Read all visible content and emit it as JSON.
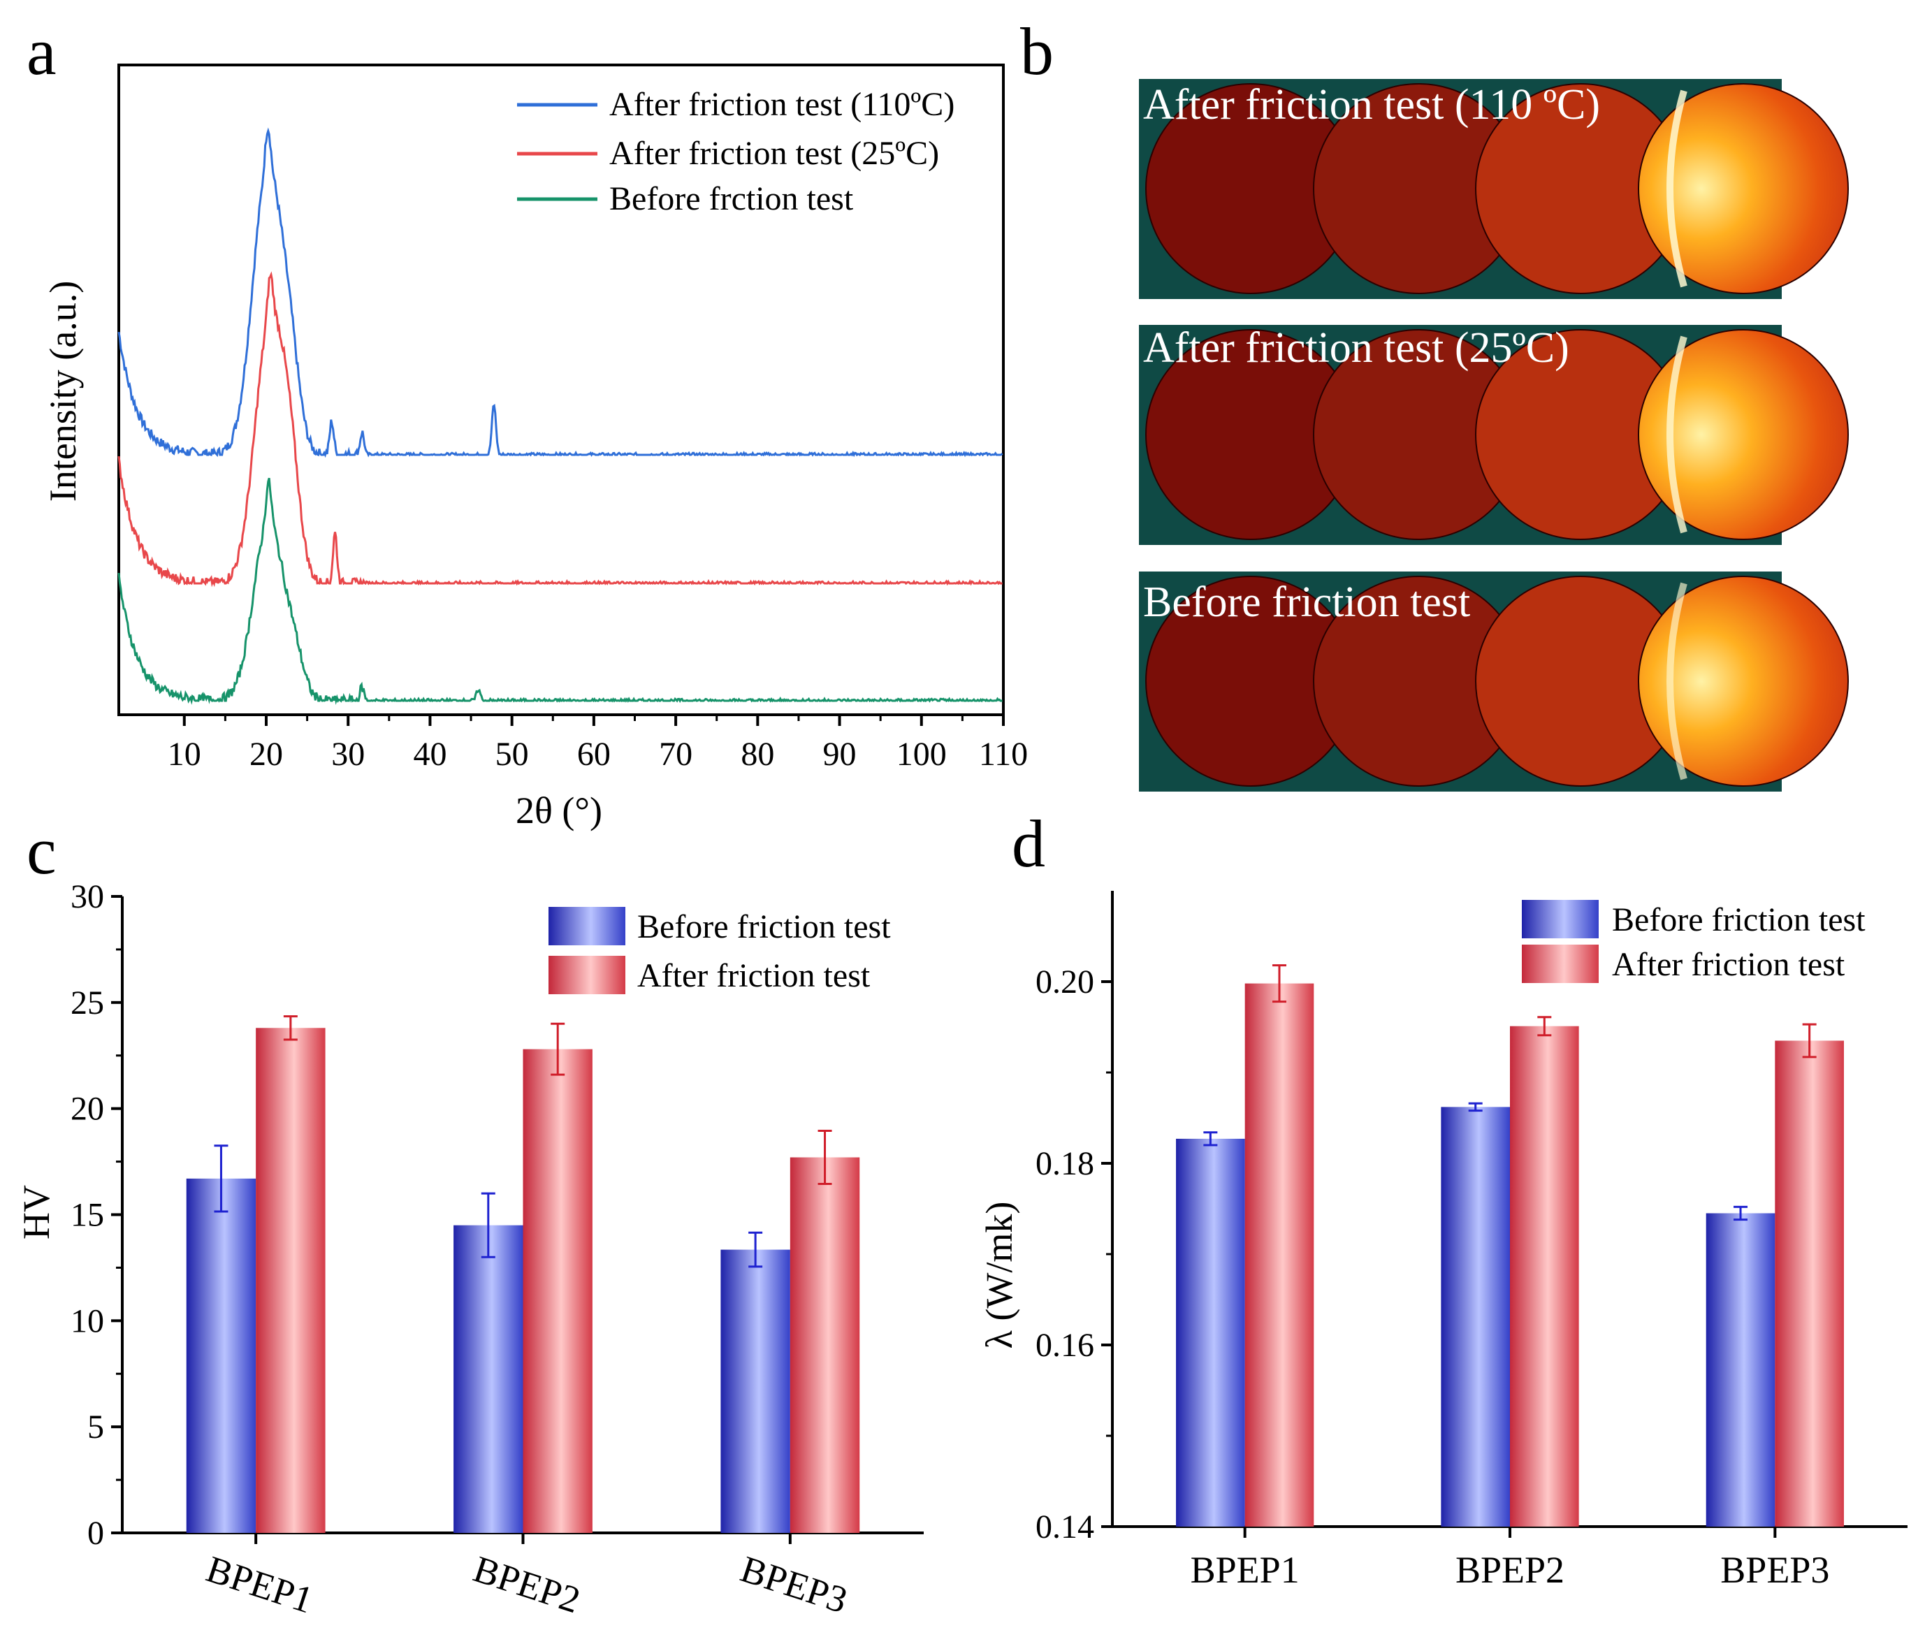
{
  "panels": {
    "a": {
      "letter": "a"
    },
    "b": {
      "letter": "b"
    },
    "c": {
      "letter": "c"
    },
    "d": {
      "letter": "d"
    }
  },
  "colors": {
    "blue": "#2f6fd8",
    "red": "#e8474a",
    "green": "#16936a",
    "bar_blue": "#3a44cc",
    "bar_red": "#d2474e",
    "xrd_bg": "#0f4a45"
  },
  "chart_data": [
    {
      "id": "a",
      "type": "line",
      "xlabel": "2θ (°)",
      "ylabel": "Intensity (a.u.)",
      "xlim": [
        2,
        110
      ],
      "xticks": [
        10,
        20,
        30,
        40,
        50,
        60,
        70,
        80,
        90,
        100,
        110
      ],
      "series": [
        {
          "name": "After friction test (110ºC)",
          "color": "#2f6fd8",
          "offset": 2.2,
          "main_peak": 20.2,
          "main_height": 2.55,
          "shoulder": 23.0,
          "shoulder_height": 0.55,
          "extra_peaks": [
            [
              28.0,
              0.3
            ],
            [
              31.7,
              0.2
            ],
            [
              47.8,
              0.45
            ]
          ]
        },
        {
          "name": "After friction test (25ºC)",
          "color": "#e8474a",
          "offset": 1.05,
          "main_peak": 20.5,
          "main_height": 2.35,
          "shoulder": 23.0,
          "shoulder_height": 0.65,
          "extra_peaks": [
            [
              28.4,
              0.45
            ]
          ]
        },
        {
          "name": "Before frction test",
          "color": "#16936a",
          "offset": 0.0,
          "main_peak": 20.3,
          "main_height": 1.6,
          "shoulder": 23.5,
          "shoulder_height": 0.3,
          "extra_peaks": [
            [
              31.7,
              0.12
            ],
            [
              45.9,
              0.1
            ]
          ]
        }
      ]
    },
    {
      "id": "b",
      "type": "image-strips",
      "strips": [
        {
          "label": "After friction test (110 ºC)",
          "ring_brightness": 0.85
        },
        {
          "label": "After friction test (25ºC)",
          "ring_brightness": 0.8
        },
        {
          "label": "Before friction test",
          "ring_brightness": 0.65
        }
      ]
    },
    {
      "id": "c",
      "type": "bar",
      "ylabel": "HV",
      "ylim": [
        0,
        30
      ],
      "yticks": [
        0,
        5,
        10,
        15,
        20,
        25,
        30
      ],
      "categories": [
        "BPEP1",
        "BPEP2",
        "BPEP3"
      ],
      "series": [
        {
          "name": "Before friction test",
          "values": [
            16.7,
            14.5,
            13.35
          ],
          "errors": [
            1.55,
            1.5,
            0.8
          ]
        },
        {
          "name": "After friction test",
          "values": [
            23.8,
            22.8,
            17.7
          ],
          "errors": [
            0.55,
            1.2,
            1.25
          ]
        }
      ]
    },
    {
      "id": "d",
      "type": "bar",
      "ylabel": "λ (W/mk)",
      "ylim": [
        0.14,
        0.21
      ],
      "yticks": [
        0.14,
        0.16,
        0.18,
        0.2
      ],
      "ytick_labels": [
        "0.14",
        "0.16",
        "0.18",
        "0.20"
      ],
      "categories": [
        "BPEP1",
        "BPEP2",
        "BPEP3"
      ],
      "series": [
        {
          "name": "Before friction test",
          "values": [
            0.1827,
            0.1862,
            0.1745
          ],
          "errors": [
            0.0007,
            0.0004,
            0.0007
          ]
        },
        {
          "name": "After friction test",
          "values": [
            0.1998,
            0.1951,
            0.1935
          ],
          "errors": [
            0.002,
            0.001,
            0.0018
          ]
        }
      ]
    }
  ]
}
